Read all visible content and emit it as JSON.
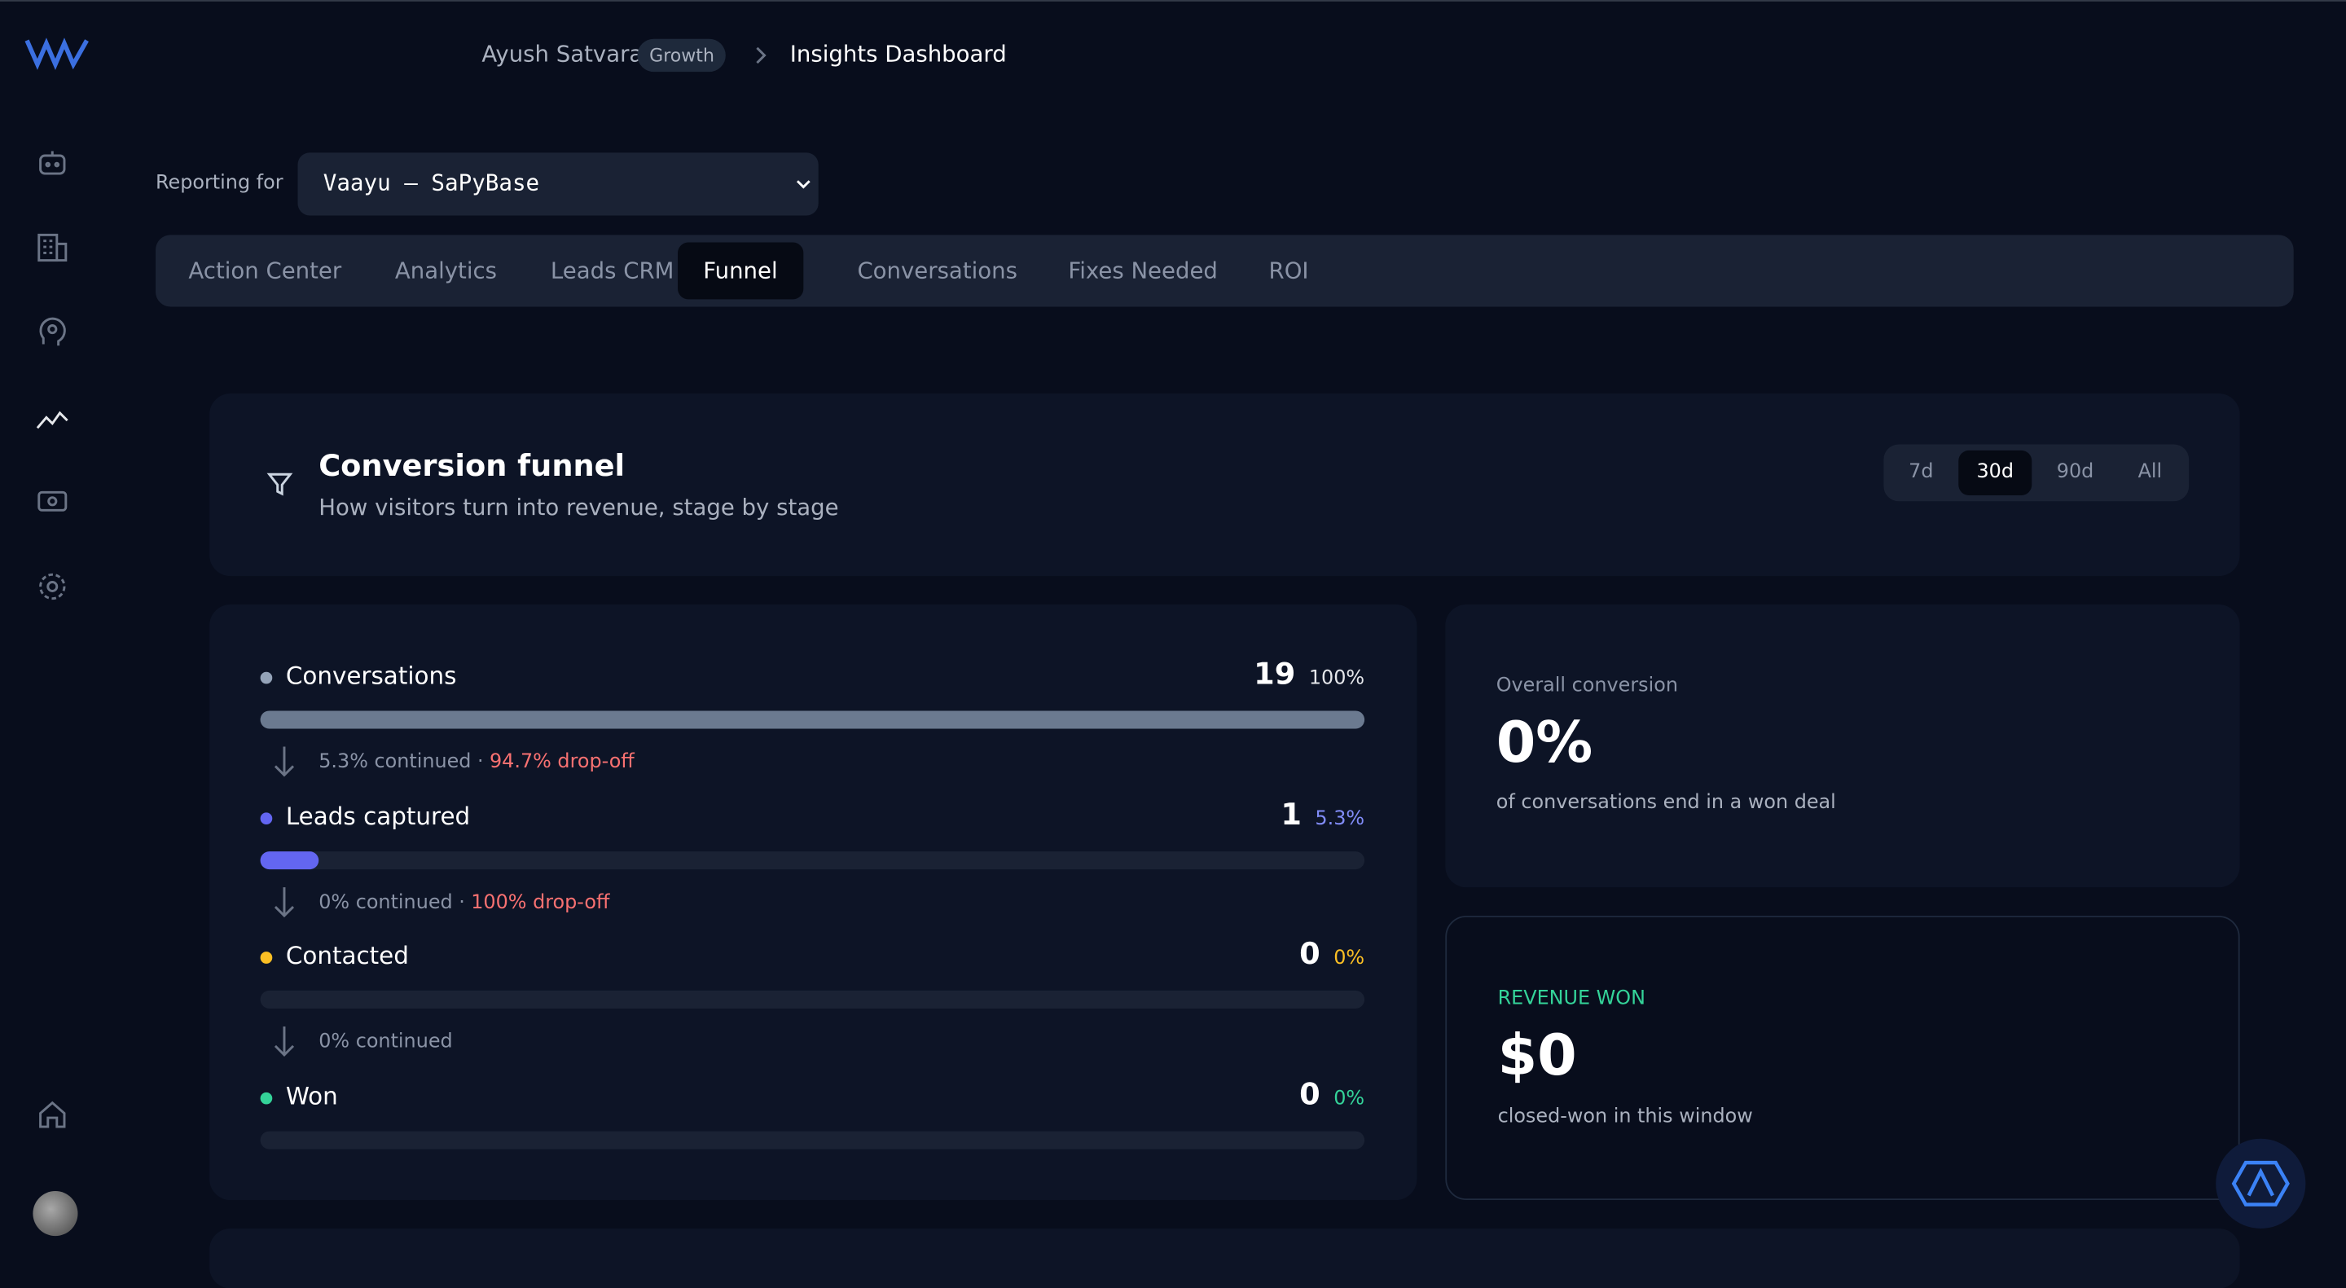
{
  "header": {
    "user": "Ayush Satvara",
    "plan": "Growth",
    "page": "Insights Dashboard"
  },
  "reporting": {
    "label": "Reporting for",
    "selected": "Vaayu — SaPyBase"
  },
  "tabs": [
    "Action Center",
    "Analytics",
    "Leads CRM",
    "Funnel",
    "Conversations",
    "Fixes Needed",
    "ROI"
  ],
  "active_tab": 3,
  "funnel": {
    "title": "Conversion funnel",
    "subtitle": "How visitors turn into revenue, stage by stage",
    "periods": [
      "7d",
      "30d",
      "90d",
      "All"
    ],
    "active_period": 1,
    "stages": [
      {
        "name": "Conversations",
        "count": 19,
        "share": 100,
        "share_label": "100%",
        "color": "#94a3b8",
        "bar_color": "#6b7a90",
        "label_color": "#e5e7eb",
        "continued": "5.3% continued ·",
        "dropoff": "94.7% drop-off"
      },
      {
        "name": "Leads captured",
        "count": 1,
        "share": 5.3,
        "share_label": "5.3%",
        "color": "#6366f1",
        "bar_color": "#6366f1",
        "label_color": "#818cf8",
        "continued": "0% continued ·",
        "dropoff": "100% drop-off"
      },
      {
        "name": "Contacted",
        "count": 0,
        "share": 0,
        "share_label": "0%",
        "color": "#fbbf24",
        "bar_color": "#fbbf24",
        "label_color": "#fbbf24",
        "continued": "0% continued"
      },
      {
        "name": "Won",
        "count": 0,
        "share": 0,
        "share_label": "0%",
        "color": "#34d399",
        "bar_color": "#34d399",
        "label_color": "#34d399"
      }
    ]
  },
  "overall": {
    "label": "Overall conversion",
    "value": "0%",
    "caption": "of conversations end in a won deal"
  },
  "revenue": {
    "label": "REVENUE WON",
    "value": "$0",
    "caption": "closed-won in this window"
  }
}
